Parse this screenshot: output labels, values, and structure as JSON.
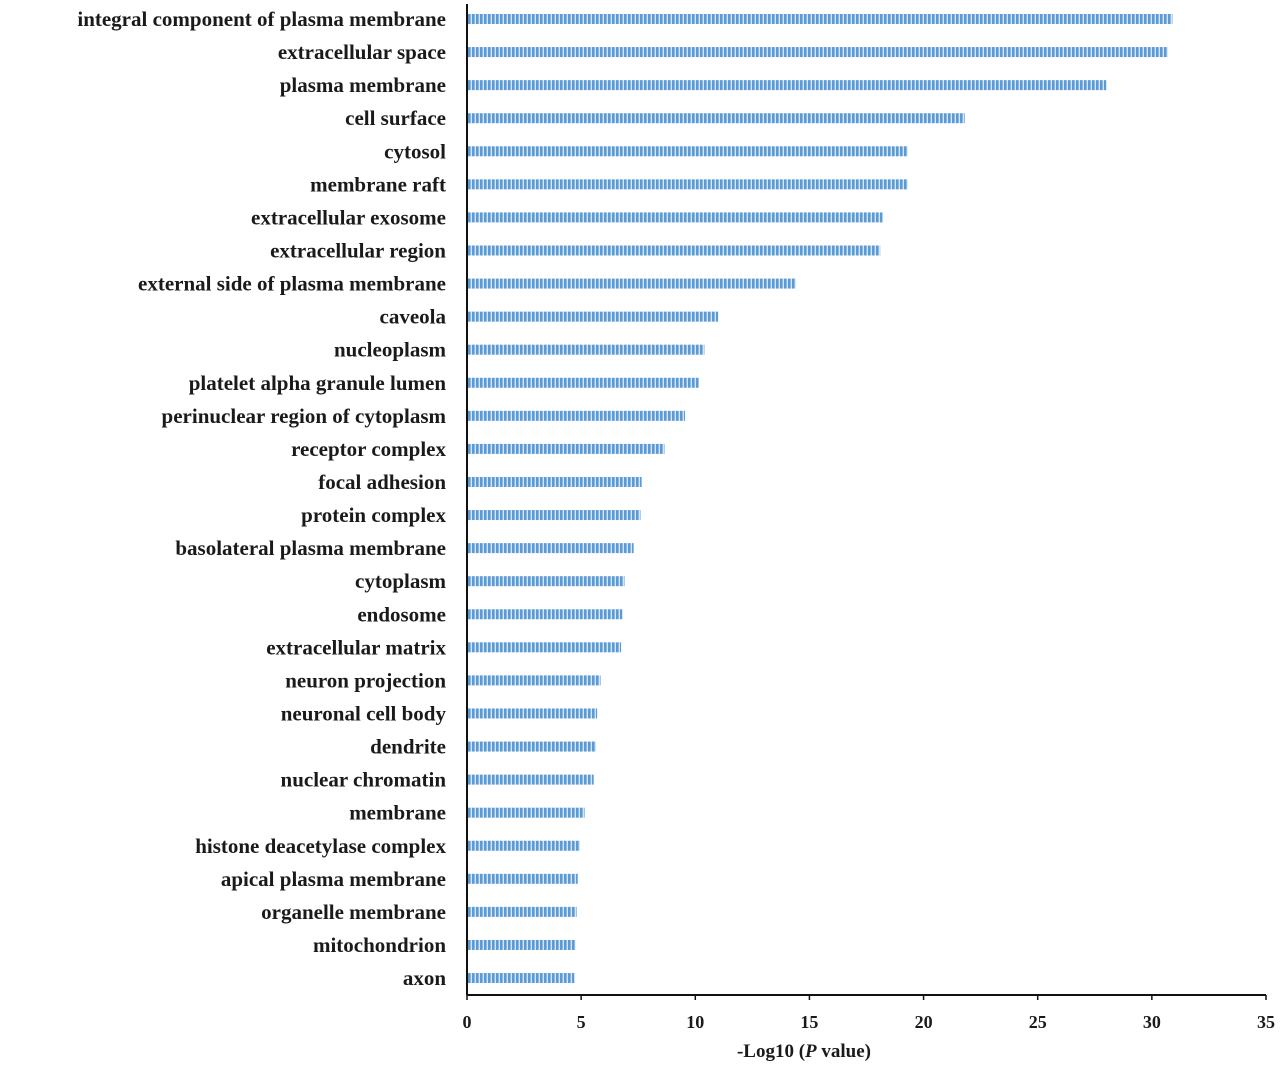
{
  "chart_data": {
    "type": "bar",
    "orientation": "horizontal",
    "title": "",
    "xlabel_prefix": "-Log10 (",
    "xlabel_italic": "P",
    "xlabel_suffix": " value)",
    "ylabel": "",
    "xlim": [
      0,
      35
    ],
    "xticks": [
      0,
      5,
      10,
      15,
      20,
      25,
      30,
      35
    ],
    "grid": false,
    "legend": "none",
    "bar_color": "#5b9bd5",
    "bar_stripe_color": "#ffffff",
    "categories": [
      "integral component of plasma membrane",
      "extracellular space",
      "plasma membrane",
      "cell surface",
      "cytosol",
      "membrane raft",
      "extracellular exosome",
      "extracellular region",
      "external side of plasma membrane",
      "caveola",
      "nucleoplasm",
      "platelet alpha granule lumen",
      "perinuclear region of cytoplasm",
      "receptor complex",
      "focal adhesion",
      "protein complex",
      "basolateral plasma membrane",
      "cytoplasm",
      "endosome",
      "extracellular matrix",
      "neuron projection",
      "neuronal cell body",
      "dendrite",
      "nuclear chromatin",
      "membrane",
      "histone deacetylase complex",
      "apical plasma membrane",
      "organelle membrane",
      "mitochondrion",
      "axon"
    ],
    "values": [
      30.9,
      30.7,
      28.0,
      21.8,
      19.3,
      19.3,
      18.2,
      18.1,
      14.4,
      11.0,
      10.4,
      10.15,
      9.55,
      8.65,
      7.65,
      7.6,
      7.3,
      6.9,
      6.8,
      6.75,
      5.85,
      5.7,
      5.65,
      5.55,
      5.15,
      4.95,
      4.85,
      4.8,
      4.75,
      4.7
    ]
  }
}
